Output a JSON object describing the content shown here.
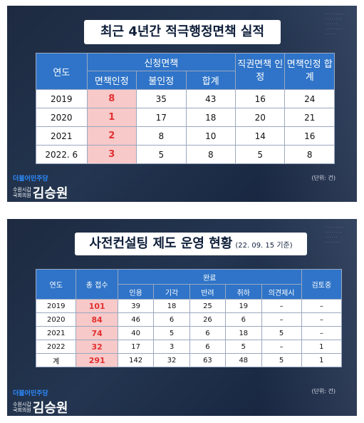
{
  "panel1": {
    "title": "최근 4년간 적극행정면책 실적",
    "headers": {
      "year": "연도",
      "applied": "신청면책",
      "sub": [
        "면책인정",
        "불인정",
        "합계"
      ],
      "ex_officio": "직권면책 인정",
      "total": "면책인정 합계"
    },
    "rows": [
      [
        "2019",
        "8",
        "35",
        "43",
        "16",
        "24"
      ],
      [
        "2020",
        "1",
        "17",
        "18",
        "20",
        "21"
      ],
      [
        "2021",
        "2",
        "8",
        "10",
        "14",
        "16"
      ],
      [
        "2022. 6",
        "3",
        "5",
        "8",
        "5",
        "8"
      ]
    ],
    "unit": "(단위: 건)"
  },
  "panel2": {
    "title": "사전컨설팅 제도 운영 현황",
    "title_sub": "(22. 09. 15 기준)",
    "headers": {
      "year": "연도",
      "total": "총 접수",
      "done": "완료",
      "sub": [
        "인용",
        "기각",
        "반려",
        "취하",
        "의견제시"
      ],
      "review": "검토중"
    },
    "rows": [
      [
        "2019",
        "101",
        "39",
        "18",
        "25",
        "19",
        "–",
        "–"
      ],
      [
        "2020",
        "84",
        "46",
        "6",
        "26",
        "6",
        "–",
        "–"
      ],
      [
        "2021",
        "74",
        "40",
        "5",
        "6",
        "18",
        "5",
        "–"
      ],
      [
        "2022",
        "32",
        "17",
        "3",
        "6",
        "5",
        "–",
        "1"
      ],
      [
        "계",
        "291",
        "142",
        "32",
        "63",
        "48",
        "5",
        "1"
      ]
    ],
    "unit": "(단위: 건)"
  },
  "brand": {
    "party": "더불어민주당",
    "role1": "수원시갑",
    "role2": "국회의원",
    "name": "김승원"
  },
  "colors": {
    "header_blue": "#2f74c8",
    "highlight_bg": "#f7c9c9",
    "highlight_text": "#e23030",
    "party_blue": "#2d8cff"
  }
}
